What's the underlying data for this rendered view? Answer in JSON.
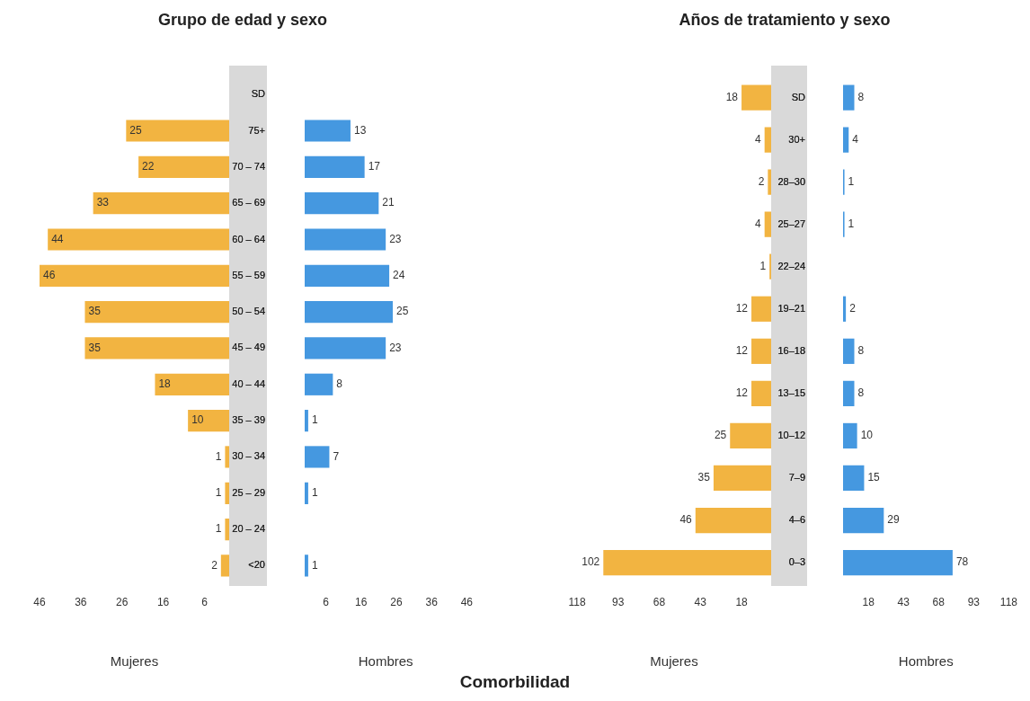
{
  "chart_data": [
    {
      "type": "bar",
      "orientation": "horizontal",
      "title": "Grupo de edad y sexo",
      "xlabel": "Mujeres",
      "annotations": [
        "Comorbilidad"
      ],
      "categories": [
        "SD",
        "75+",
        "70 – 74",
        "65 – 69",
        "60 – 64",
        "55 – 59",
        "50 – 54",
        "45 – 49",
        "40 – 44",
        "35 – 39",
        "30 – 34",
        "25 – 29",
        "20 – 24",
        "<20"
      ],
      "values": [
        null,
        25,
        22,
        33,
        44,
        46,
        35,
        35,
        18,
        10,
        1,
        1,
        1,
        2
      ],
      "color": "#f2b441",
      "xlim": [
        46,
        0
      ],
      "xticks": [
        46,
        36,
        26,
        16,
        6
      ],
      "tick_labels": "x",
      "data_labels": true
    },
    {
      "type": "bar",
      "orientation": "horizontal",
      "xlabel": "Hombres",
      "categories": [
        "SD",
        "75+",
        "70 – 74",
        "65 – 69",
        "60 – 64",
        "55 – 59",
        "50 – 54",
        "45 – 49",
        "40 – 44",
        "35 – 39",
        "30 – 34",
        "25 – 29",
        "20 – 24",
        "<20"
      ],
      "values": [
        null,
        13,
        17,
        21,
        23,
        24,
        25,
        23,
        8,
        1,
        7,
        1,
        null,
        1
      ],
      "color": "#4598e0",
      "xlim": [
        0,
        46
      ],
      "xticks": [
        6,
        16,
        26,
        36,
        46
      ],
      "data_labels": true
    },
    {
      "type": "bar",
      "orientation": "horizontal",
      "title": "Años de tratamiento y sexo",
      "xlabel": "Mujeres",
      "categories": [
        "SD",
        "30+",
        "28–30",
        "25–27",
        "22–24",
        "19–21",
        "16–18",
        "13–15",
        "10–12",
        "7–9",
        "4–6",
        "0–3"
      ],
      "values": [
        18,
        4,
        2,
        4,
        1,
        12,
        12,
        12,
        25,
        35,
        46,
        102
      ],
      "color": "#f2b441",
      "xlim": [
        118,
        0
      ],
      "xticks": [
        118,
        93,
        68,
        43,
        18
      ],
      "tick_labels": "x",
      "data_labels": true
    },
    {
      "type": "bar",
      "orientation": "horizontal",
      "xlabel": "Hombres",
      "categories": [
        "SD",
        "30+",
        "28–30",
        "25–27",
        "22–24",
        "19–21",
        "16–18",
        "13–15",
        "10–12",
        "7–9",
        "4–6",
        "0–3"
      ],
      "values": [
        8,
        4,
        1,
        1,
        null,
        2,
        8,
        8,
        10,
        15,
        29,
        78
      ],
      "color": "#4598e0",
      "xlim": [
        0,
        118
      ],
      "xticks": [
        18,
        43,
        68,
        93,
        118
      ],
      "data_labels": true
    }
  ]
}
